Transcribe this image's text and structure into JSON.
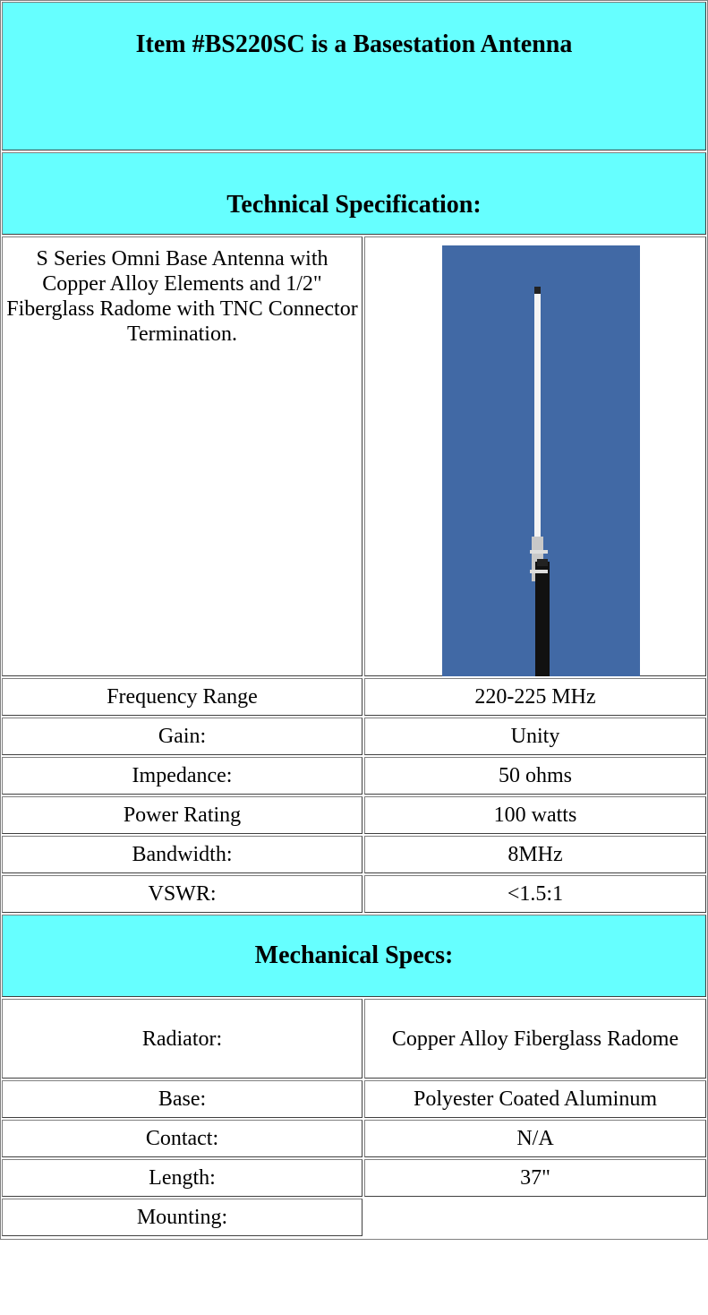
{
  "header": {
    "title": "Item #BS220SC is a Basestation Antenna"
  },
  "technical": {
    "heading": "Technical Specification:",
    "description": "S Series Omni Base Antenna with Copper Alloy Elements and 1/2\" Fiberglass Radome with TNC Connector Termination.",
    "rows": [
      [
        "Frequency Range",
        "220-225 MHz"
      ],
      [
        "Gain:",
        "Unity"
      ],
      [
        "Impedance:",
        "50 ohms"
      ],
      [
        "Power Rating",
        "100 watts"
      ],
      [
        "Bandwidth:",
        "8MHz"
      ],
      [
        "VSWR:",
        "<1.5:1"
      ]
    ]
  },
  "mechanical": {
    "heading": "Mechanical Specs:",
    "rows": [
      [
        "Radiator:",
        "Copper Alloy Fiberglass Radome"
      ],
      [
        "Base:",
        "Polyester Coated Aluminum"
      ],
      [
        "Contact:",
        "N/A"
      ],
      [
        "Length:",
        "37\""
      ],
      [
        "Mounting:"
      ]
    ]
  }
}
